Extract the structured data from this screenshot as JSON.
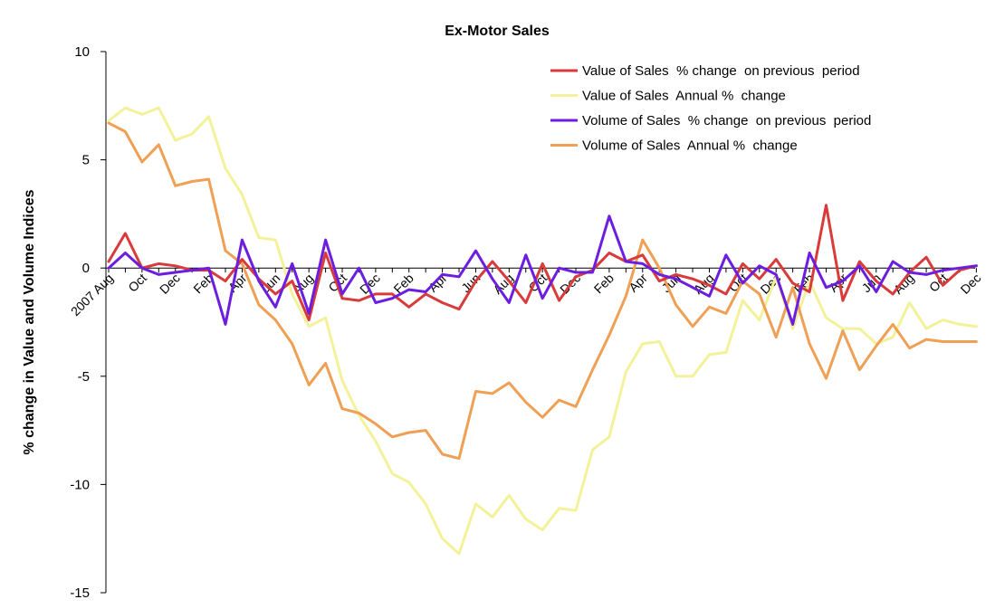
{
  "chart_data": {
    "type": "line",
    "title": "Ex-Motor Sales",
    "xlabel": "",
    "ylabel": "% change in Value and Volume Indices",
    "ylim": [
      -15,
      10
    ],
    "yticks": [
      10,
      5,
      0,
      -5,
      -10,
      -15
    ],
    "grid": false,
    "legend_position": "top-right",
    "x": [
      "2007 Aug",
      "Sep",
      "Oct",
      "Nov",
      "Dec",
      "Jan",
      "Feb",
      "Mar",
      "Apr",
      "May",
      "Jun",
      "Jul",
      "Aug",
      "Sep",
      "Oct",
      "Nov",
      "Dec",
      "Jan",
      "Feb",
      "Mar",
      "Apr",
      "May",
      "Jun",
      "Jul",
      "Aug",
      "Sep",
      "Oct",
      "Nov",
      "Dec",
      "Jan",
      "Feb",
      "Mar",
      "Apr",
      "May",
      "Jun",
      "Jul",
      "Aug",
      "Sep",
      "Oct",
      "Nov",
      "Dec",
      "Jan",
      "Feb",
      "Mar",
      "Apr",
      "May",
      "Jun",
      "Jul",
      "Aug",
      "Sep",
      "Oct",
      "Nov",
      "Dec"
    ],
    "x_tick_labels": [
      {
        "index": 0,
        "label": "2007 Aug"
      },
      {
        "index": 2,
        "label": "Oct"
      },
      {
        "index": 4,
        "label": "Dec"
      },
      {
        "index": 6,
        "label": "Feb"
      },
      {
        "index": 8,
        "label": "Apr"
      },
      {
        "index": 10,
        "label": "Jun"
      },
      {
        "index": 12,
        "label": "Aug"
      },
      {
        "index": 14,
        "label": "Oct"
      },
      {
        "index": 16,
        "label": "Dec"
      },
      {
        "index": 18,
        "label": "Feb"
      },
      {
        "index": 20,
        "label": "Apr"
      },
      {
        "index": 22,
        "label": "Jun"
      },
      {
        "index": 24,
        "label": "Aug"
      },
      {
        "index": 26,
        "label": "Oct"
      },
      {
        "index": 28,
        "label": "Dec"
      },
      {
        "index": 30,
        "label": "Feb"
      },
      {
        "index": 32,
        "label": "Apr"
      },
      {
        "index": 34,
        "label": "Jun"
      },
      {
        "index": 36,
        "label": "Aug"
      },
      {
        "index": 38,
        "label": "Oct"
      },
      {
        "index": 40,
        "label": "Dec"
      },
      {
        "index": 42,
        "label": "Feb"
      },
      {
        "index": 44,
        "label": "Apr"
      },
      {
        "index": 46,
        "label": "Jun"
      },
      {
        "index": 48,
        "label": "Aug"
      },
      {
        "index": 50,
        "label": "Oct"
      },
      {
        "index": 52,
        "label": "Dec"
      }
    ],
    "series": [
      {
        "name": "Value of Sales  % change  on previous  period",
        "color": "#d93a3a",
        "values": [
          0.3,
          1.6,
          0,
          0.2,
          0.1,
          -0.1,
          -0.1,
          -0.6,
          0.4,
          -0.5,
          -1.2,
          -0.6,
          -2.4,
          0.7,
          -1.4,
          -1.5,
          -1.2,
          -1.2,
          -1.8,
          -1.2,
          -1.6,
          -1.9,
          -0.6,
          0.3,
          -0.6,
          -1.6,
          0.2,
          -1.5,
          -0.4,
          -0.1,
          0.7,
          0.3,
          0.6,
          -0.6,
          -0.3,
          -0.5,
          -0.8,
          -1.2,
          0.2,
          -0.5,
          0.4,
          -0.7,
          -1.1,
          2.9,
          -1.5,
          0.3,
          -0.6,
          -1.2,
          -0.2,
          0.5,
          -0.8,
          -0.1,
          0.1
        ]
      },
      {
        "name": "Value of Sales  Annual %  change",
        "color": "#f3f29a",
        "values": [
          6.8,
          7.4,
          7.1,
          7.4,
          5.9,
          6.2,
          7.0,
          4.6,
          3.4,
          1.4,
          1.3,
          -1.2,
          -2.7,
          -2.3,
          -5.2,
          -6.8,
          -8.0,
          -9.5,
          -9.9,
          -10.9,
          -12.5,
          -13.2,
          -10.9,
          -11.5,
          -10.5,
          -11.6,
          -12.1,
          -11.1,
          -11.2,
          -8.4,
          -7.8,
          -4.8,
          -3.5,
          -3.4,
          -5.0,
          -5.0,
          -4.0,
          -3.9,
          -1.5,
          -2.4,
          -0.4,
          -2.8,
          -0.6,
          -2.3,
          -2.8,
          -2.8,
          -3.5,
          -3.2,
          -1.6,
          -2.8,
          -2.4,
          -2.6,
          -2.7
        ]
      },
      {
        "name": "Volume of Sales  % change  on previous  period",
        "color": "#6b1ee0",
        "values": [
          0,
          0.7,
          0,
          -0.3,
          -0.2,
          -0.1,
          0,
          -2.6,
          1.3,
          -0.6,
          -1.8,
          0.2,
          -2.1,
          1.3,
          -1.2,
          0,
          -1.6,
          -1.4,
          -1.0,
          -1.1,
          -0.3,
          -0.4,
          0.8,
          -0.5,
          -1.6,
          0.6,
          -1.4,
          0,
          -0.2,
          -0.2,
          2.4,
          0.3,
          0.2,
          -0.3,
          -0.5,
          -0.9,
          -1.3,
          0.6,
          -0.7,
          0.1,
          -0.3,
          -2.6,
          0.7,
          -0.9,
          -0.6,
          0.1,
          -1.1,
          0.3,
          -0.2,
          -0.3,
          -0.1,
          0,
          0.1
        ]
      },
      {
        "name": "Volume of Sales  Annual %  change",
        "color": "#f0a055",
        "values": [
          6.7,
          6.3,
          4.9,
          5.7,
          3.8,
          4.0,
          4.1,
          0.8,
          0.2,
          -1.7,
          -2.4,
          -3.5,
          -5.4,
          -4.4,
          -6.5,
          -6.7,
          -7.2,
          -7.8,
          -7.6,
          -7.5,
          -8.6,
          -8.8,
          -5.7,
          -5.8,
          -5.3,
          -6.2,
          -6.9,
          -6.1,
          -6.4,
          -4.7,
          -3.1,
          -1.3,
          1.3,
          0,
          -1.7,
          -2.7,
          -1.8,
          -2.1,
          -0.6,
          -1.2,
          -3.2,
          -0.9,
          -3.5,
          -5.1,
          -2.9,
          -4.7,
          -3.6,
          -2.6,
          -3.7,
          -3.3,
          -3.4,
          -3.4,
          -3.4
        ]
      }
    ]
  }
}
